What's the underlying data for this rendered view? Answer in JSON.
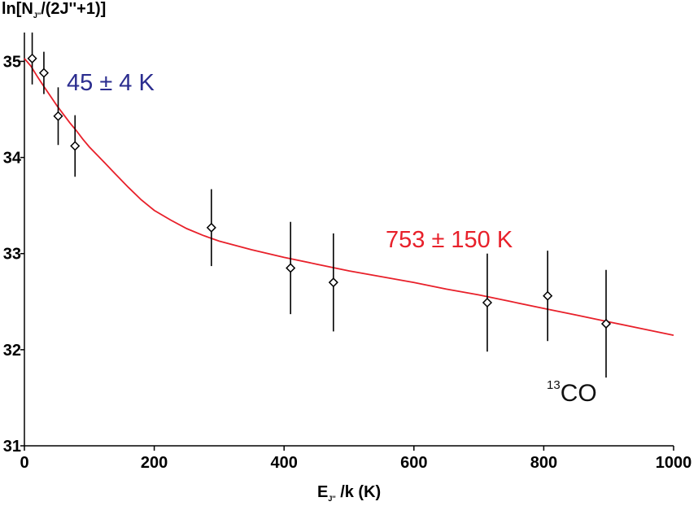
{
  "chart_data": {
    "type": "scatter",
    "title": "",
    "xlabel": {
      "main": "E",
      "sub": "J''",
      "rest": " /k (K)"
    },
    "ylabel": {
      "main": "ln[N",
      "sub": "J''",
      "rest": "/(2J''+1)]"
    },
    "xlim": [
      0,
      1000
    ],
    "ylim": [
      31,
      35.3
    ],
    "xticks": [
      0,
      200,
      400,
      600,
      800,
      1000
    ],
    "yticks": [
      31,
      32,
      33,
      34,
      35
    ],
    "grid": false,
    "points": [
      {
        "x": 12,
        "y": 35.03,
        "err": 0.27
      },
      {
        "x": 30,
        "y": 34.88,
        "err": 0.22
      },
      {
        "x": 52,
        "y": 34.43,
        "err": 0.3
      },
      {
        "x": 78,
        "y": 34.12,
        "err": 0.32
      },
      {
        "x": 288,
        "y": 33.27,
        "err": 0.4
      },
      {
        "x": 410,
        "y": 32.85,
        "err": 0.48
      },
      {
        "x": 476,
        "y": 32.7,
        "err": 0.51
      },
      {
        "x": 713,
        "y": 32.49,
        "err": 0.51
      },
      {
        "x": 806,
        "y": 32.56,
        "err": 0.47
      },
      {
        "x": 896,
        "y": 32.27,
        "err": 0.56
      }
    ],
    "fit_curve": {
      "color": "#e8202a",
      "x": [
        0,
        10,
        20,
        30,
        40,
        50,
        60,
        70,
        80,
        90,
        100,
        120,
        140,
        160,
        180,
        200,
        225,
        250,
        275,
        300,
        350,
        400,
        450,
        500,
        550,
        600,
        650,
        700,
        750,
        800,
        850,
        900,
        950,
        1000
      ],
      "y": [
        35.03,
        34.95,
        34.84,
        34.74,
        34.64,
        34.54,
        34.45,
        34.36,
        34.28,
        34.19,
        34.11,
        33.97,
        33.83,
        33.69,
        33.56,
        33.45,
        33.35,
        33.26,
        33.19,
        33.13,
        33.04,
        32.96,
        32.89,
        32.82,
        32.76,
        32.7,
        32.63,
        32.57,
        32.5,
        32.43,
        32.36,
        32.29,
        32.22,
        32.15
      ]
    },
    "annotations": {
      "low_temp": "45 ± 4 K",
      "high_temp": "753 ± 150 K",
      "species_sup": "13",
      "species": "CO"
    },
    "colors": {
      "low_temp": "#2b2d8f",
      "high_temp": "#e8202a",
      "points": "#000000",
      "axes": "#000000"
    }
  }
}
